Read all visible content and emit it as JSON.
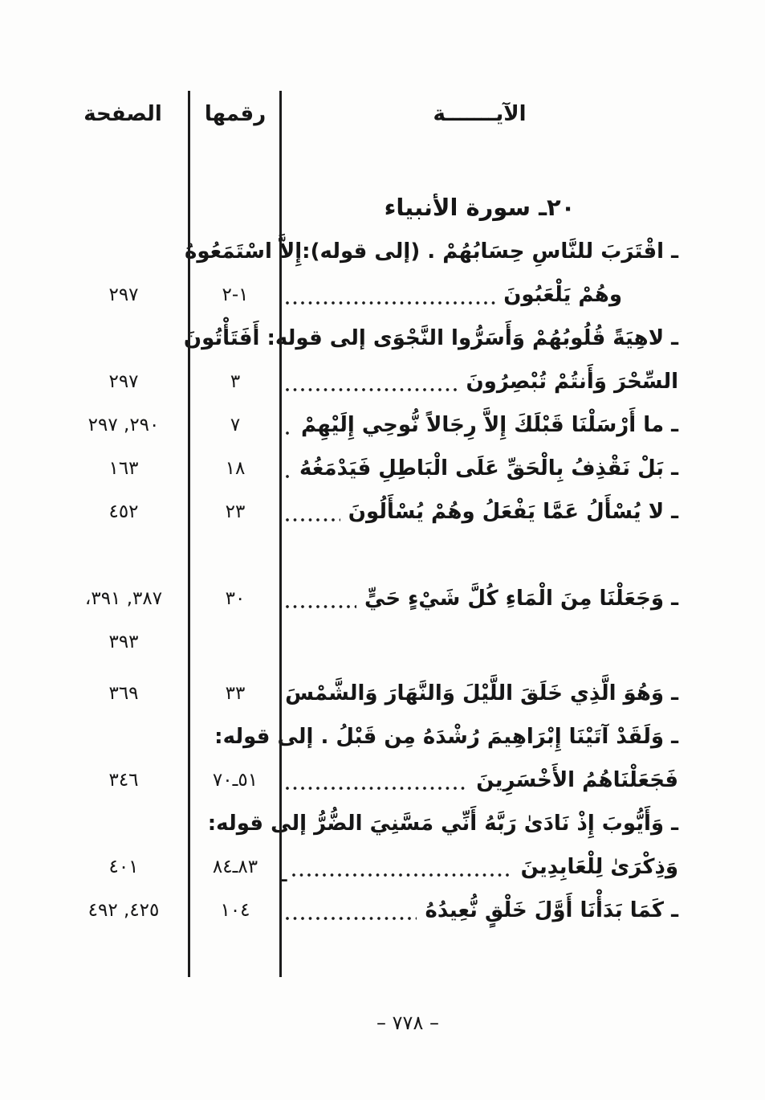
{
  "header": {
    "verse_col": "الآيـــــــة",
    "number_col": "رقمها",
    "page_col": "الصفحة"
  },
  "section_title": "٢٠ـ سورة الأنبياء",
  "entries": [
    {
      "verse_lines": [
        {
          "text": "ـ اقْتَرَبَ للنَّاسِ حِسَابُهُمْ . (إلى قوله):إِلاَّ اسْتَمَعُوهُ",
          "dots": false
        },
        {
          "text": "وهُمْ يَلْعَبُونَ",
          "dots": true,
          "indent": true
        }
      ],
      "number": "١-٢",
      "pages": [
        "٢٩٧"
      ]
    },
    {
      "verse_lines": [
        {
          "text": "ـ لاهِيَةً قُلُوبُهُمْ وَأَسَرُّوا النَّجْوَى إلى قوله: أَفَتَأْتُونَ",
          "dots": false
        },
        {
          "text": "السِّحْرَ وَأَنتُمْ تُبْصِرُونَ",
          "dots": true
        }
      ],
      "number": "٣",
      "pages": [
        "٢٩٧"
      ]
    },
    {
      "verse_lines": [
        {
          "text": "ـ ما أَرْسَلْنَا قَبْلَكَ إِلاَّ رِجَالاً نُّوحِي إِلَيْهِمْ",
          "dots": true
        }
      ],
      "number": "٧",
      "pages": [
        "٢٩٠, ٢٩٧"
      ]
    },
    {
      "verse_lines": [
        {
          "text": "ـ بَلْ نَقْذِفُ بِالْحَقِّ عَلَى الْبَاطِلِ فَيَدْمَغُهُ",
          "dots": true
        }
      ],
      "number": "١٨",
      "pages": [
        "١٦٣"
      ]
    },
    {
      "verse_lines": [
        {
          "text": "ـ لا يُسْأَلُ عَمَّا يَفْعَلُ وهُمْ يُسْأَلُونَ",
          "dots": true
        }
      ],
      "number": "٢٣",
      "pages": [
        "٤٥٢"
      ]
    },
    {
      "verse_lines": [
        {
          "text": "ـ وَجَعَلْنَا مِنَ الْمَاءِ كُلَّ شَيْءٍ حَيٍّ",
          "dots": true
        }
      ],
      "number": "٣٠",
      "pages": [
        "٣٨٧, ٣٩١،",
        "٣٩٣"
      ]
    },
    {
      "verse_lines": [
        {
          "text": "ـ وَهُوَ الَّذِي خَلَقَ اللَّيْلَ وَالنَّهَارَ وَالشَّمْسَ",
          "dots": true
        }
      ],
      "number": "٣٣",
      "pages": [
        "٣٦٩"
      ]
    },
    {
      "verse_lines": [
        {
          "text": "ـ وَلَقَدْ آتَيْنَا إِبْرَاهِيمَ رُشْدَهُ مِن قَبْلُ . إلى قوله:",
          "dots": false
        },
        {
          "text": "فَجَعَلْنَاهُمُ الأَخْسَرِينَ",
          "dots": true
        }
      ],
      "number": "٥١ـ٧٠",
      "pages": [
        "٣٤٦"
      ]
    },
    {
      "verse_lines": [
        {
          "text": "ـ وَأَيُّوبَ إِذْ نَادَىٰ رَبَّهُ أَنِّي مَسَّنِيَ الضُّرُّ إلى قوله:",
          "dots": false
        },
        {
          "text": "وَذِكْرَىٰ لِلْعَابِدِينَ",
          "dots": true,
          "tail": "ـ"
        }
      ],
      "number": "٨٣ـ٨٤",
      "pages": [
        "٤٠١"
      ]
    },
    {
      "verse_lines": [
        {
          "text": "ـ  كَمَا بَدَأْنَا أَوَّلَ خَلْقٍ نُّعِيدُهُ",
          "dots": true
        }
      ],
      "number": "١٠٤",
      "pages": [
        "٤٢٥, ٤٩٢"
      ]
    }
  ],
  "footer": {
    "page_number": "– ٧٧٨ –"
  }
}
